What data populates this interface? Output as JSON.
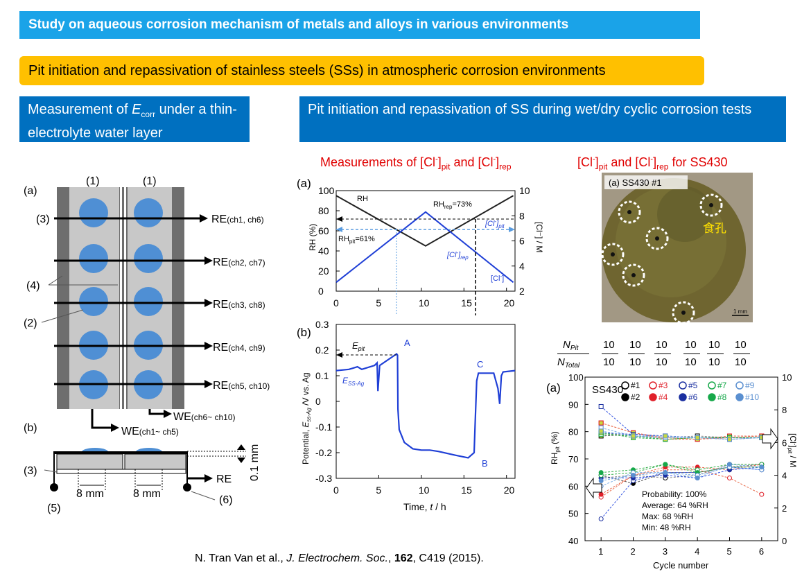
{
  "banners": {
    "main": "Study on aqueous corrosion mechanism of metals and alloys in various environments",
    "sub": "Pit initiation and repassivation of stainless steels (SSs) in atmospheric corrosion environments"
  },
  "headers": {
    "left_pre": "Measurement of ",
    "left_E": "E",
    "left_sub": "corr",
    "left_post": " under a thin-electrolyte water layer",
    "right": "Pit initiation and repassivation of SS during wet/dry cyclic corrosion tests"
  },
  "colors": {
    "banner1": "#1aa3e8",
    "banner2": "#ffc000",
    "header": "#0070c0",
    "accent_red": "#e00000",
    "plot_blue": "#1f3fd6"
  },
  "diagram": {
    "a_label": "(a)",
    "b_label": "(b)",
    "one": "(1)",
    "n2": "(2)",
    "n3": "(3)",
    "n4": "(4)",
    "n5": "(5)",
    "n6": "(6)",
    "re_prefix": "RE",
    "re_channels": [
      "(ch1, ch6)",
      "(ch2, ch7)",
      "(ch3, ch8)",
      "(ch4, ch9)",
      "(ch5, ch10)"
    ],
    "we_prefix": "WE",
    "we_left": "(ch1~ ch5)",
    "we_right": "(ch6~ ch10)",
    "dim_8mm": "8 mm",
    "dim_01mm": "0.1 mm",
    "re": "RE"
  },
  "mid_title": {
    "pre": "Measurements of [Cl",
    "sup": "-",
    "mid": "]",
    "sub1": "pit",
    "and": " and [Cl",
    "sub2": "rep"
  },
  "right_title": {
    "pre": "[Cl",
    "sup": "-",
    "sub1": "pit",
    "and": " and [Cl",
    "sub2": "rep",
    "post": " for SS430"
  },
  "photo": {
    "caption": "(a) SS430 #1",
    "pit_label": "食孔",
    "scale": "1 mm"
  },
  "ratio": {
    "num_label": "N",
    "num_sub": "Pit",
    "den_label": "N",
    "den_sub": "Total",
    "values": [
      "10/10",
      "10/10",
      "10/10",
      "10/10",
      "10/10",
      "10/10"
    ],
    "num": "10",
    "den": "10"
  },
  "chart_data": [
    {
      "type": "line",
      "panel": "(a)",
      "x": [
        0,
        10.5,
        20.8
      ],
      "series": [
        {
          "name": "RH",
          "values": [
            95,
            45,
            95
          ]
        },
        {
          "name": "[Cl-]",
          "axis": "right",
          "values": [
            2.7,
            8.3,
            2.7
          ]
        }
      ],
      "xlim": [
        0,
        21
      ],
      "ylim": [
        0,
        100
      ],
      "y2lim": [
        2,
        10
      ],
      "xticks": [
        "0",
        "5",
        "10",
        "15",
        "20"
      ],
      "yticks": [
        "0",
        "20",
        "40",
        "60",
        "80",
        "100"
      ],
      "y2ticks": [
        "2",
        "4",
        "6",
        "8",
        "10"
      ],
      "ylabel": "RH (%)",
      "y2label": "[Cl⁻] / M",
      "annotations": [
        "RH",
        "RH_rep=73%",
        "RH_pit=61%",
        "[Cl-]_pit",
        "[Cl-]_rep",
        "[Cl-]"
      ]
    },
    {
      "type": "line",
      "panel": "(b)",
      "xlim": [
        0,
        21
      ],
      "ylim": [
        -0.3,
        0.3
      ],
      "xticks": [
        "0",
        "5",
        "10",
        "15",
        "20"
      ],
      "yticks": [
        "0.3",
        "0.2",
        "0.1",
        "0",
        "-0.1",
        "-0.2",
        "-0.3"
      ],
      "xlabel": "Time, t / h",
      "ylabel": "Potential, E_ss-Ag / V vs. Ag",
      "points": {
        "A": [
          7.2,
          0.19
        ],
        "B": [
          16.3,
          -0.21
        ],
        "C": [
          16.6,
          0.11
        ]
      },
      "annotations": [
        "E_pit",
        "E_SS-Ag",
        "A",
        "B",
        "C"
      ]
    },
    {
      "type": "scatter",
      "panel": "(a)",
      "title": "SS430",
      "x": [
        1,
        2,
        3,
        4,
        5,
        6
      ],
      "xlim": [
        0.5,
        6.5
      ],
      "ylim": [
        40,
        100
      ],
      "y2lim": [
        0,
        10
      ],
      "xticks": [
        "1",
        "2",
        "3",
        "4",
        "5",
        "6"
      ],
      "yticks": [
        "40",
        "50",
        "60",
        "70",
        "80",
        "90",
        "100"
      ],
      "y2ticks": [
        "0",
        "2",
        "4",
        "6",
        "8",
        "10"
      ],
      "xlabel": "Cycle number",
      "ylabel": "RH_pit (%)",
      "y2label": "[Cl-]_pit / M",
      "legend": [
        "#1",
        "#2",
        "#3",
        "#4",
        "#5",
        "#6",
        "#7",
        "#8",
        "#9",
        "#10"
      ],
      "stats": [
        "Probability: 100%",
        "Average: 64 %RH",
        "Max: 68 %RH",
        "Min: 48 %RH"
      ],
      "series_rh": [
        [
          63,
          64,
          63,
          64,
          68,
          68
        ],
        [
          64,
          61,
          65,
          65,
          67,
          68
        ],
        [
          56,
          64,
          66,
          66,
          63,
          57
        ],
        [
          57,
          64,
          67,
          67,
          66,
          68
        ],
        [
          48,
          62,
          65,
          65,
          67,
          66
        ],
        [
          63,
          63,
          64,
          63,
          66,
          67
        ],
        [
          64,
          65,
          68,
          66,
          68,
          68
        ],
        [
          65,
          66,
          68,
          65,
          67,
          67
        ],
        [
          60,
          65,
          65,
          64,
          67,
          66
        ],
        [
          62,
          64,
          65,
          63,
          68,
          67
        ]
      ],
      "series_cl": [
        [
          6.6,
          6.4,
          6.3,
          6.4,
          6.3,
          6.3
        ],
        [
          6.4,
          6.5,
          6.4,
          6.3,
          6.2,
          6.3
        ],
        [
          7.2,
          6.6,
          6.3,
          6.2,
          6.3,
          6.4
        ],
        [
          7.2,
          6.6,
          6.2,
          6.2,
          6.4,
          6.4
        ],
        [
          8.2,
          6.5,
          6.4,
          6.3,
          6.3,
          6.3
        ],
        [
          6.6,
          6.5,
          6.4,
          6.3,
          6.3,
          6.3
        ],
        [
          6.5,
          6.4,
          6.2,
          6.3,
          6.3,
          6.3
        ],
        [
          6.6,
          6.3,
          6.2,
          6.3,
          6.3,
          6.3
        ],
        [
          6.9,
          6.4,
          6.3,
          6.3,
          6.2,
          6.3
        ],
        [
          6.7,
          6.4,
          6.4,
          6.3,
          6.2,
          6.3
        ]
      ]
    }
  ],
  "citation": {
    "authors": "N. Tran Van et al., ",
    "journal": "J. Electrochem. Soc.",
    "sep": ", ",
    "vol": "162",
    "pages": ", C419 (2015)."
  }
}
